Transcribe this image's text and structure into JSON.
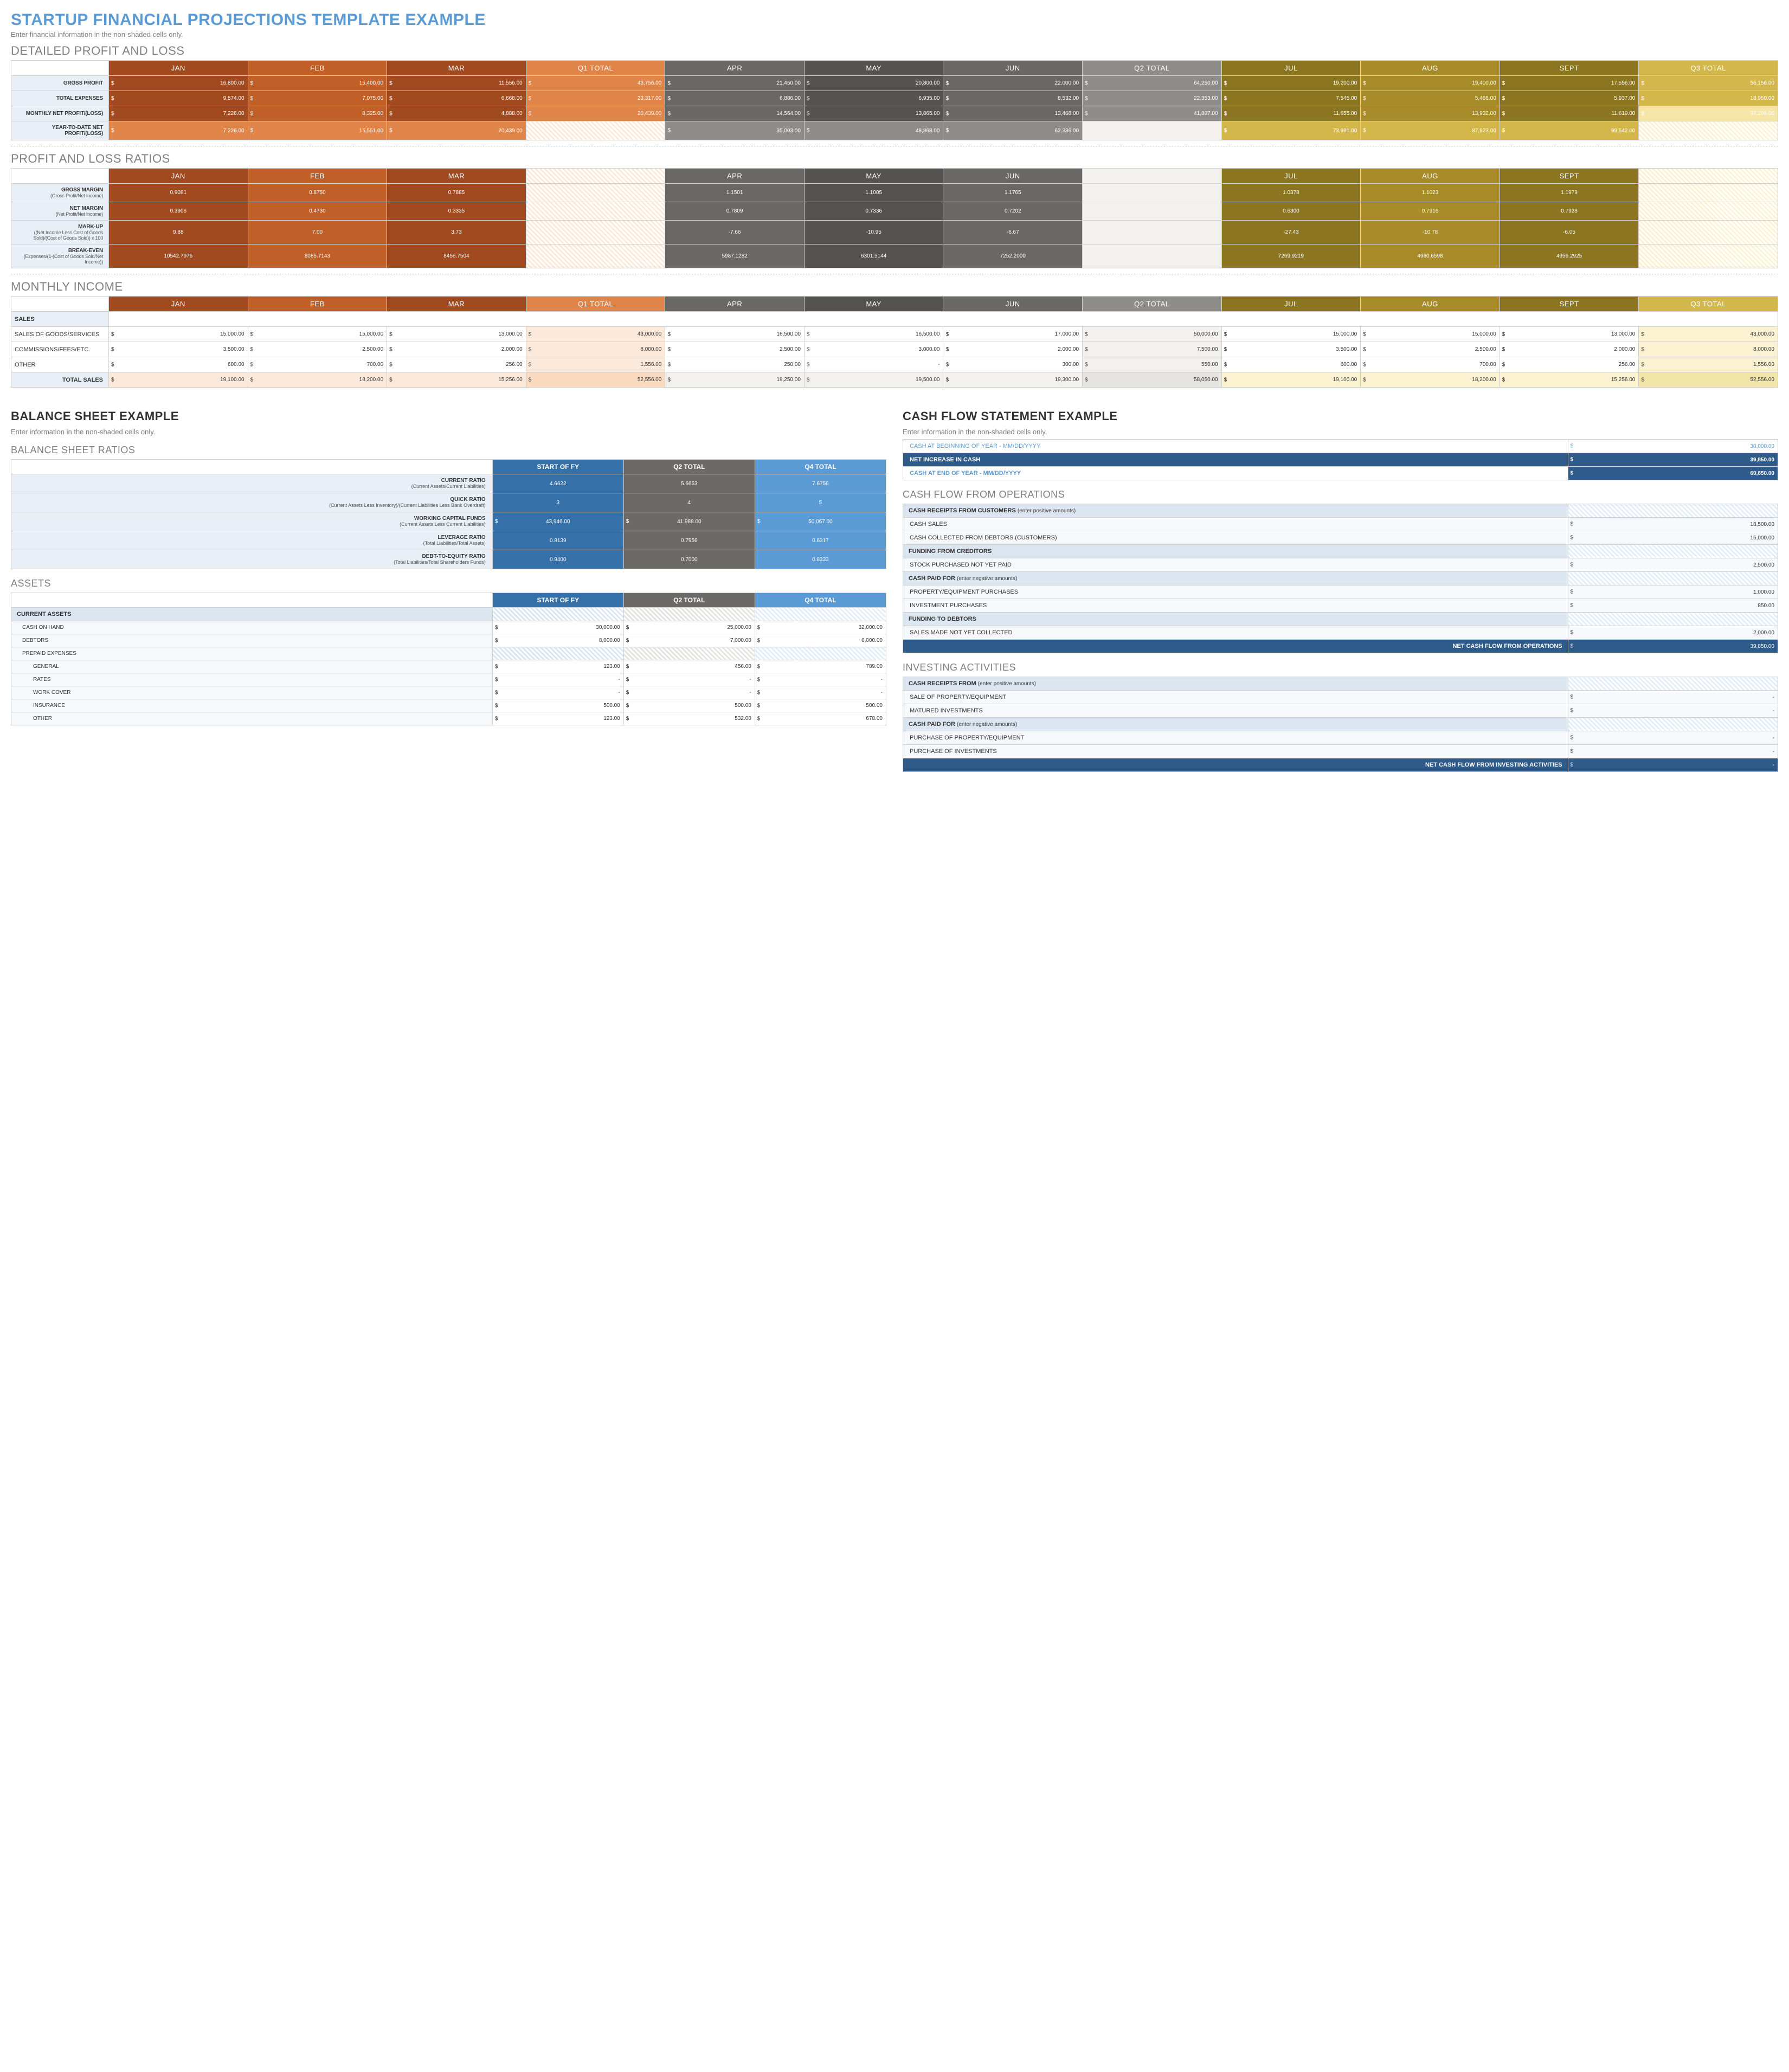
{
  "title": "STARTUP FINANCIAL PROJECTIONS TEMPLATE EXAMPLE",
  "subtitle": "Enter financial information in the non-shaded cells only.",
  "pl": {
    "title": "DETAILED PROFIT AND LOSS",
    "months": [
      "JAN",
      "FEB",
      "MAR",
      "Q1 TOTAL",
      "APR",
      "MAY",
      "JUN",
      "Q2 TOTAL",
      "JUL",
      "AUG",
      "SEPT",
      "Q3 TOTAL"
    ],
    "rows": {
      "gross_profit": {
        "label": "GROSS PROFIT",
        "vals": [
          "16,800.00",
          "15,400.00",
          "11,556.00",
          "43,756.00",
          "21,450.00",
          "20,800.00",
          "22,000.00",
          "64,250.00",
          "19,200.00",
          "19,400.00",
          "17,556.00",
          "56,156.00"
        ]
      },
      "total_expenses": {
        "label": "TOTAL EXPENSES",
        "vals": [
          "9,574.00",
          "7,075.00",
          "6,668.00",
          "23,317.00",
          "6,886.00",
          "6,935.00",
          "8,532.00",
          "22,353.00",
          "7,545.00",
          "5,468.00",
          "5,937.00",
          "18,950.00"
        ]
      },
      "monthly_net": {
        "label": "MONTHLY NET PROFIT/(LOSS)",
        "vals": [
          "7,226.00",
          "8,325.00",
          "4,888.00",
          "20,439.00",
          "14,564.00",
          "13,865.00",
          "13,468.00",
          "41,897.00",
          "11,655.00",
          "13,932.00",
          "11,619.00",
          "37,206.00"
        ]
      },
      "ytd_net": {
        "label": "YEAR-TO-DATE NET PROFIT/(LOSS)",
        "vals": [
          "7,226.00",
          "15,551.00",
          "20,439.00",
          "",
          "35,003.00",
          "48,868.00",
          "62,336.00",
          "",
          "73,991.00",
          "87,923.00",
          "99,542.00",
          ""
        ]
      }
    }
  },
  "ratios": {
    "title": "PROFIT AND LOSS RATIOS",
    "rows": {
      "gm": {
        "label": "GROSS MARGIN",
        "sub": "(Gross Profit/Net Income)",
        "v": [
          "0.9081",
          "0.8750",
          "0.7885",
          "1.1501",
          "1.1005",
          "1.1765",
          "1.0378",
          "1.1023",
          "1.1979"
        ]
      },
      "nm": {
        "label": "NET MARGIN",
        "sub": "(Net Profit/Net Income)",
        "v": [
          "0.3906",
          "0.4730",
          "0.3335",
          "0.7809",
          "0.7336",
          "0.7202",
          "0.6300",
          "0.7916",
          "0.7928"
        ]
      },
      "mu": {
        "label": "MARK-UP",
        "sub": "((Net Income Less Cost of Goods Sold)/(Cost of Goods Sold)) x 100",
        "v": [
          "9.88",
          "7.00",
          "3.73",
          "-7.66",
          "-10.95",
          "-6.67",
          "-27.43",
          "-10.78",
          "-6.05"
        ]
      },
      "be": {
        "label": "BREAK-EVEN",
        "sub": "(Expenses/(1-(Cost of Goods Sold/Net Income))",
        "v": [
          "10542.7976",
          "8085.7143",
          "8456.7504",
          "5987.1282",
          "6301.5144",
          "7252.2000",
          "7269.9219",
          "4960.6598",
          "4956.2925"
        ]
      }
    }
  },
  "mi": {
    "title": "MONTHLY INCOME",
    "sales_label": "SALES",
    "total_label": "TOTAL SALES",
    "rows": {
      "sogs": {
        "label": "SALES OF GOODS/SERVICES",
        "v": [
          "15,000.00",
          "15,000.00",
          "13,000.00",
          "43,000.00",
          "16,500.00",
          "16,500.00",
          "17,000.00",
          "50,000.00",
          "15,000.00",
          "15,000.00",
          "13,000.00",
          "43,000.00"
        ]
      },
      "comm": {
        "label": "COMMISSIONS/FEES/ETC.",
        "v": [
          "3,500.00",
          "2,500.00",
          "2,000.00",
          "8,000.00",
          "2,500.00",
          "3,000.00",
          "2,000.00",
          "7,500.00",
          "3,500.00",
          "2,500.00",
          "2,000.00",
          "8,000.00"
        ]
      },
      "other": {
        "label": "OTHER",
        "v": [
          "600.00",
          "700.00",
          "256.00",
          "1,556.00",
          "250.00",
          "-",
          "300.00",
          "550.00",
          "600.00",
          "700.00",
          "256.00",
          "1,556.00"
        ]
      },
      "total": {
        "v": [
          "19,100.00",
          "18,200.00",
          "15,256.00",
          "52,556.00",
          "19,250.00",
          "19,500.00",
          "19,300.00",
          "58,050.00",
          "19,100.00",
          "18,200.00",
          "15,256.00",
          "52,556.00"
        ]
      }
    }
  },
  "bs": {
    "title": "BALANCE SHEET EXAMPLE",
    "sub": "Enter information in the non-shaded cells only.",
    "ratios_title": "BALANCE SHEET RATIOS",
    "cols": [
      "START OF FY",
      "Q2 TOTAL",
      "Q4 TOTAL"
    ],
    "ratios": {
      "cr": {
        "label": "CURRENT RATIO",
        "sub": "(Current Assets/Current Liabilities)",
        "v": [
          "4.6622",
          "5.6653",
          "7.6756"
        ]
      },
      "qr": {
        "label": "QUICK RATIO",
        "sub": "(Current Assets Less Inventory)/(Current Liabilities Less Bank Overdraft)",
        "v": [
          "3",
          "4",
          "5"
        ]
      },
      "wc": {
        "label": "WORKING CAPITAL FUNDS",
        "sub": "(Current Assets Less Current Liabilities)",
        "v": [
          "43,946.00",
          "41,988.00",
          "50,067.00"
        ],
        "dollar": true
      },
      "lr": {
        "label": "LEVERAGE RATIO",
        "sub": "(Total Liabilities/Total Assets)",
        "v": [
          "0.8139",
          "0.7956",
          "0.6317"
        ]
      },
      "de": {
        "label": "DEBT-TO-EQUITY RATIO",
        "sub": "(Total Liabilities/Total Shareholders Funds)",
        "v": [
          "0.9400",
          "0.7000",
          "0.8333"
        ]
      }
    },
    "assets_title": "ASSETS",
    "assets": {
      "sec1": "CURRENT ASSETS",
      "r": [
        {
          "l": "CASH ON HAND",
          "v": [
            "30,000.00",
            "25,000.00",
            "32,000.00"
          ]
        },
        {
          "l": "DEBTORS",
          "v": [
            "8,000.00",
            "7,000.00",
            "6,000.00"
          ]
        }
      ],
      "sec2": "PREPAID EXPENSES",
      "r2": [
        {
          "l": "GENERAL",
          "v": [
            "123.00",
            "456.00",
            "789.00"
          ]
        },
        {
          "l": "RATES",
          "v": [
            "-",
            "-",
            "-"
          ]
        },
        {
          "l": "WORK COVER",
          "v": [
            "-",
            "-",
            "-"
          ]
        },
        {
          "l": "INSURANCE",
          "v": [
            "500.00",
            "500.00",
            "500.00"
          ]
        },
        {
          "l": "OTHER",
          "v": [
            "123.00",
            "532.00",
            "678.00"
          ]
        }
      ]
    }
  },
  "cf": {
    "title": "CASH FLOW STATEMENT EXAMPLE",
    "sub": "Enter information in the non-shaded cells only.",
    "top": {
      "r1": {
        "l": "CASH AT BEGINNING OF YEAR - MM/DD/YYYY",
        "v": "30,000.00"
      },
      "r2": {
        "l": "NET INCREASE IN CASH",
        "v": "39,850.00"
      },
      "r3": {
        "l": "CASH AT END OF YEAR - MM/DD/YYYY",
        "v": "69,850.00"
      }
    },
    "ops": {
      "title": "CASH FLOW FROM OPERATIONS",
      "s1": "CASH RECEIPTS FROM CUSTOMERS",
      "s1n": "(enter positive amounts)",
      "r1": {
        "l": "CASH SALES",
        "v": "18,500.00"
      },
      "r2": {
        "l": "CASH COLLECTED FROM DEBTORS (CUSTOMERS)",
        "v": "15,000.00"
      },
      "s2": "FUNDING FROM CREDITORS",
      "r3": {
        "l": "STOCK PURCHASED NOT YET PAID",
        "v": "2,500.00"
      },
      "s3": "CASH PAID FOR",
      "s3n": "(enter negative amounts)",
      "r4": {
        "l": "PROPERTY/EQUIPMENT PURCHASES",
        "v": "1,000.00"
      },
      "r5": {
        "l": "INVESTMENT PURCHASES",
        "v": "850.00"
      },
      "s4": "FUNDING TO DEBTORS",
      "r6": {
        "l": "SALES MADE NOT YET COLLECTED",
        "v": "2,000.00"
      },
      "total": {
        "l": "NET CASH FLOW FROM OPERATIONS",
        "v": "39,850.00"
      }
    },
    "inv": {
      "title": "INVESTING ACTIVITIES",
      "s1": "CASH RECEIPTS FROM",
      "s1n": "(enter positive amounts)",
      "r1": {
        "l": "SALE OF PROPERTY/EQUIPMENT",
        "v": "-"
      },
      "r2": {
        "l": "MATURED INVESTMENTS",
        "v": "-"
      },
      "s2": "CASH PAID FOR",
      "s2n": "(enter negative amounts)",
      "r3": {
        "l": "PURCHASE OF PROPERTY/EQUIPMENT",
        "v": "-"
      },
      "r4": {
        "l": "PURCHASE OF INVESTMENTS",
        "v": "-"
      },
      "total": {
        "l": "NET CASH FLOW FROM INVESTING ACTIVITIES",
        "v": "-"
      }
    }
  }
}
